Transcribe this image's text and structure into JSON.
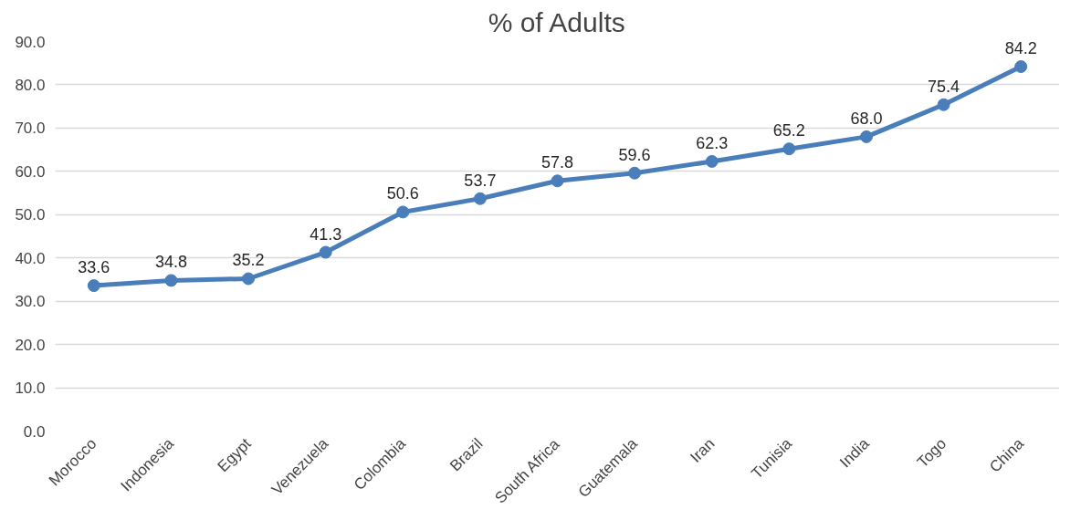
{
  "chart_data": {
    "type": "line",
    "title": "% of Adults",
    "categories": [
      "Morocco",
      "Indonesia",
      "Egypt",
      "Venezuela",
      "Colombia",
      "Brazil",
      "South Africa",
      "Guatemala",
      "Iran",
      "Tunisia",
      "India",
      "Togo",
      "China"
    ],
    "series": [
      {
        "color": "#4a7ebb",
        "values": [
          33.6,
          34.8,
          35.2,
          41.3,
          50.6,
          53.7,
          57.8,
          59.6,
          62.3,
          65.2,
          68.0,
          75.4,
          84.2
        ],
        "value_labels": [
          "33.6",
          "34.8",
          "35.2",
          "41.3",
          "50.6",
          "53.7",
          "57.8",
          "59.6",
          "62.3",
          "65.2",
          "68.0",
          "75.4",
          "84.2"
        ]
      }
    ],
    "ylim": [
      0,
      90
    ],
    "yticks": [
      {
        "value": 0,
        "label": "0.0"
      },
      {
        "value": 10,
        "label": "10.0"
      },
      {
        "value": 20,
        "label": "20.0"
      },
      {
        "value": 30,
        "label": "30.0"
      },
      {
        "value": 40,
        "label": "40.0"
      },
      {
        "value": 50,
        "label": "50.0"
      },
      {
        "value": 60,
        "label": "60.0"
      },
      {
        "value": 70,
        "label": "70.0"
      },
      {
        "value": 80,
        "label": "80.0"
      },
      {
        "value": 90,
        "label": "90.0"
      }
    ],
    "grid": "y",
    "marker": "circle",
    "line_style": "solid"
  }
}
